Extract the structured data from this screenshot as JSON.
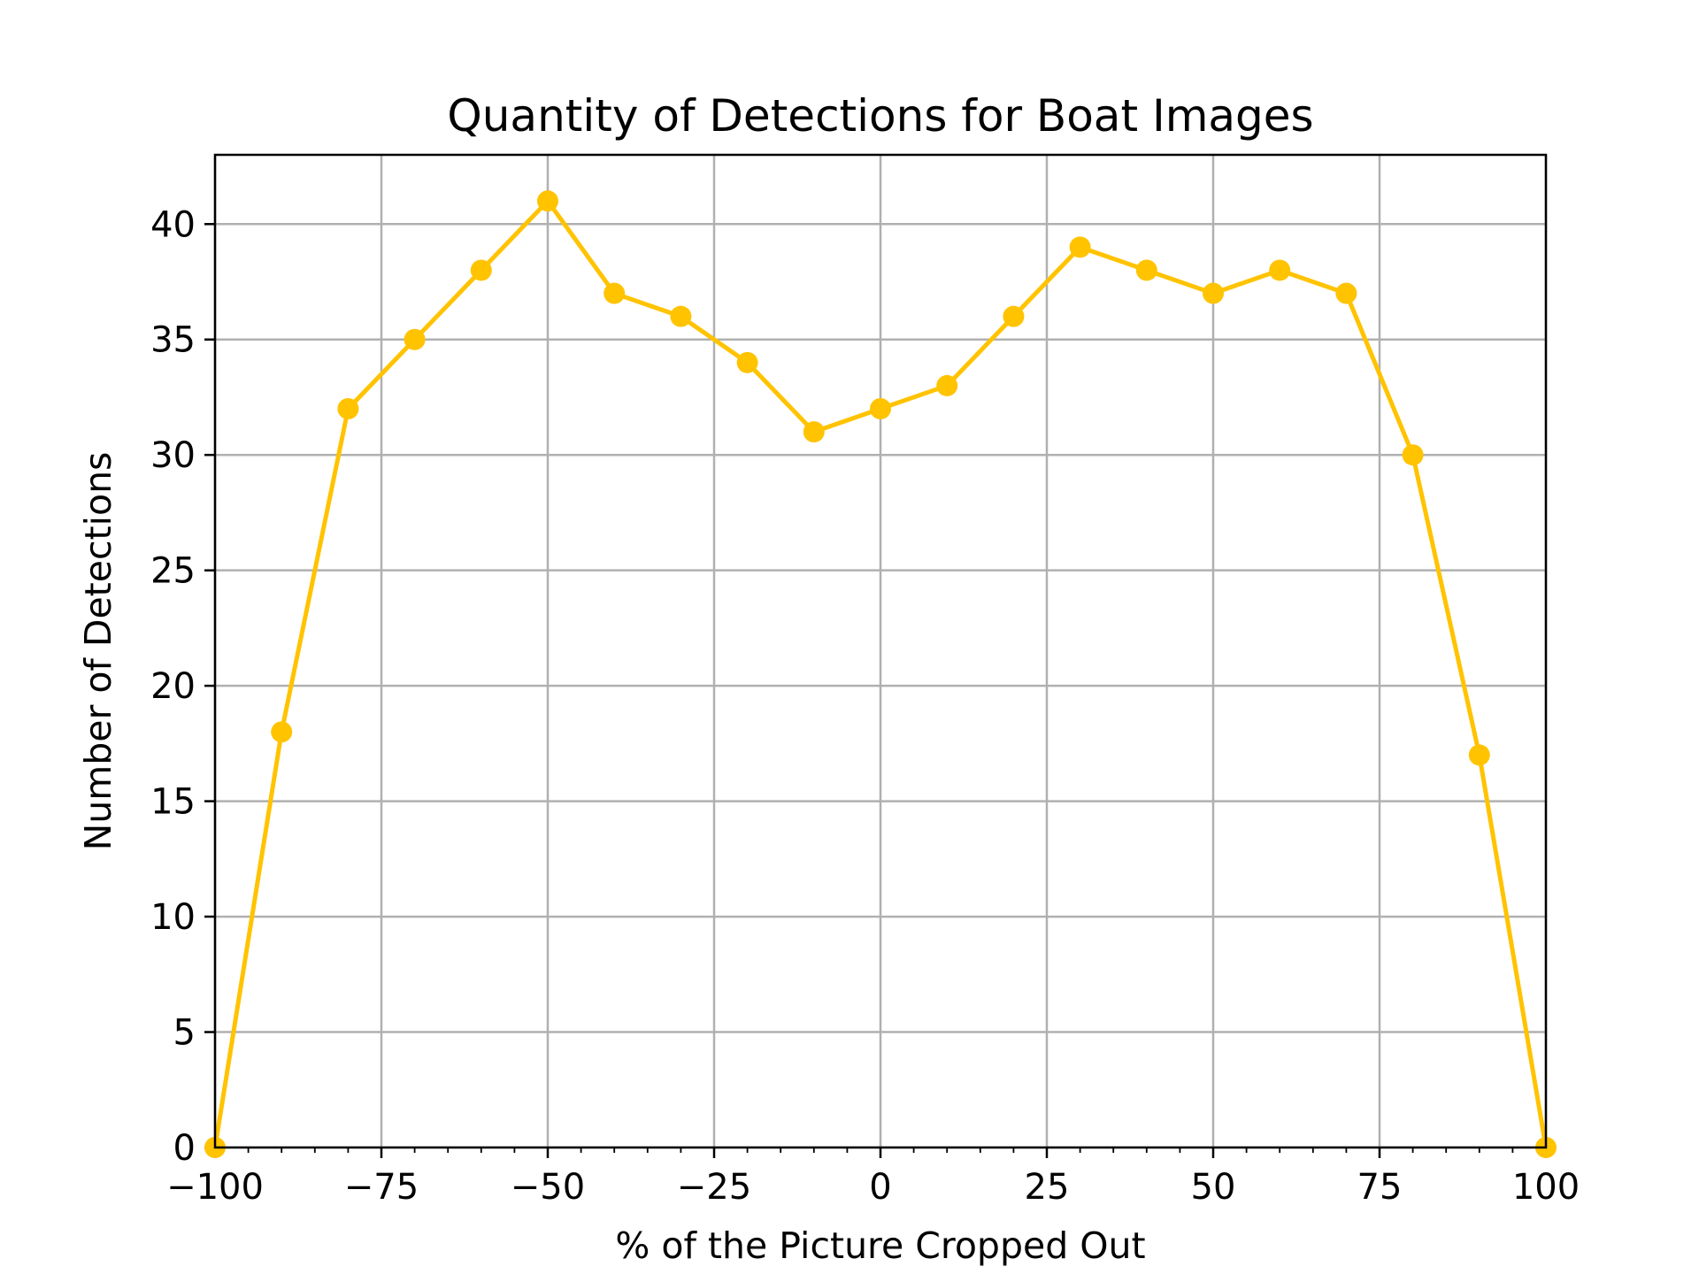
{
  "chart_data": {
    "type": "line",
    "title": "Quantity of Detections for Boat Images",
    "xlabel": "% of the Picture Cropped Out",
    "ylabel": "Number of Detections",
    "xlim": [
      -100,
      100
    ],
    "ylim": [
      0,
      43
    ],
    "grid": true,
    "line_color": "#FFC300",
    "grid_color": "#b0b0b0",
    "x_ticks": [
      -100,
      -75,
      -50,
      -25,
      0,
      25,
      50,
      75,
      100
    ],
    "x_tick_labels": [
      "−100",
      "−75",
      "−50",
      "−25",
      "0",
      "25",
      "50",
      "75",
      "100"
    ],
    "x_minor_step": 5,
    "y_ticks": [
      0,
      5,
      10,
      15,
      20,
      25,
      30,
      35,
      40
    ],
    "y_tick_labels": [
      "0",
      "5",
      "10",
      "15",
      "20",
      "25",
      "30",
      "35",
      "40"
    ],
    "series": [
      {
        "x": [
          -100,
          -90,
          -80,
          -70,
          -60,
          -50,
          -40,
          -30,
          -20,
          -10,
          0,
          10,
          20,
          30,
          40,
          50,
          60,
          70,
          80,
          90,
          100
        ],
        "y": [
          0,
          18,
          32,
          35,
          38,
          41,
          37,
          36,
          34,
          31,
          32,
          33,
          36,
          39,
          38,
          37,
          38,
          37,
          30,
          17,
          0
        ]
      }
    ]
  }
}
